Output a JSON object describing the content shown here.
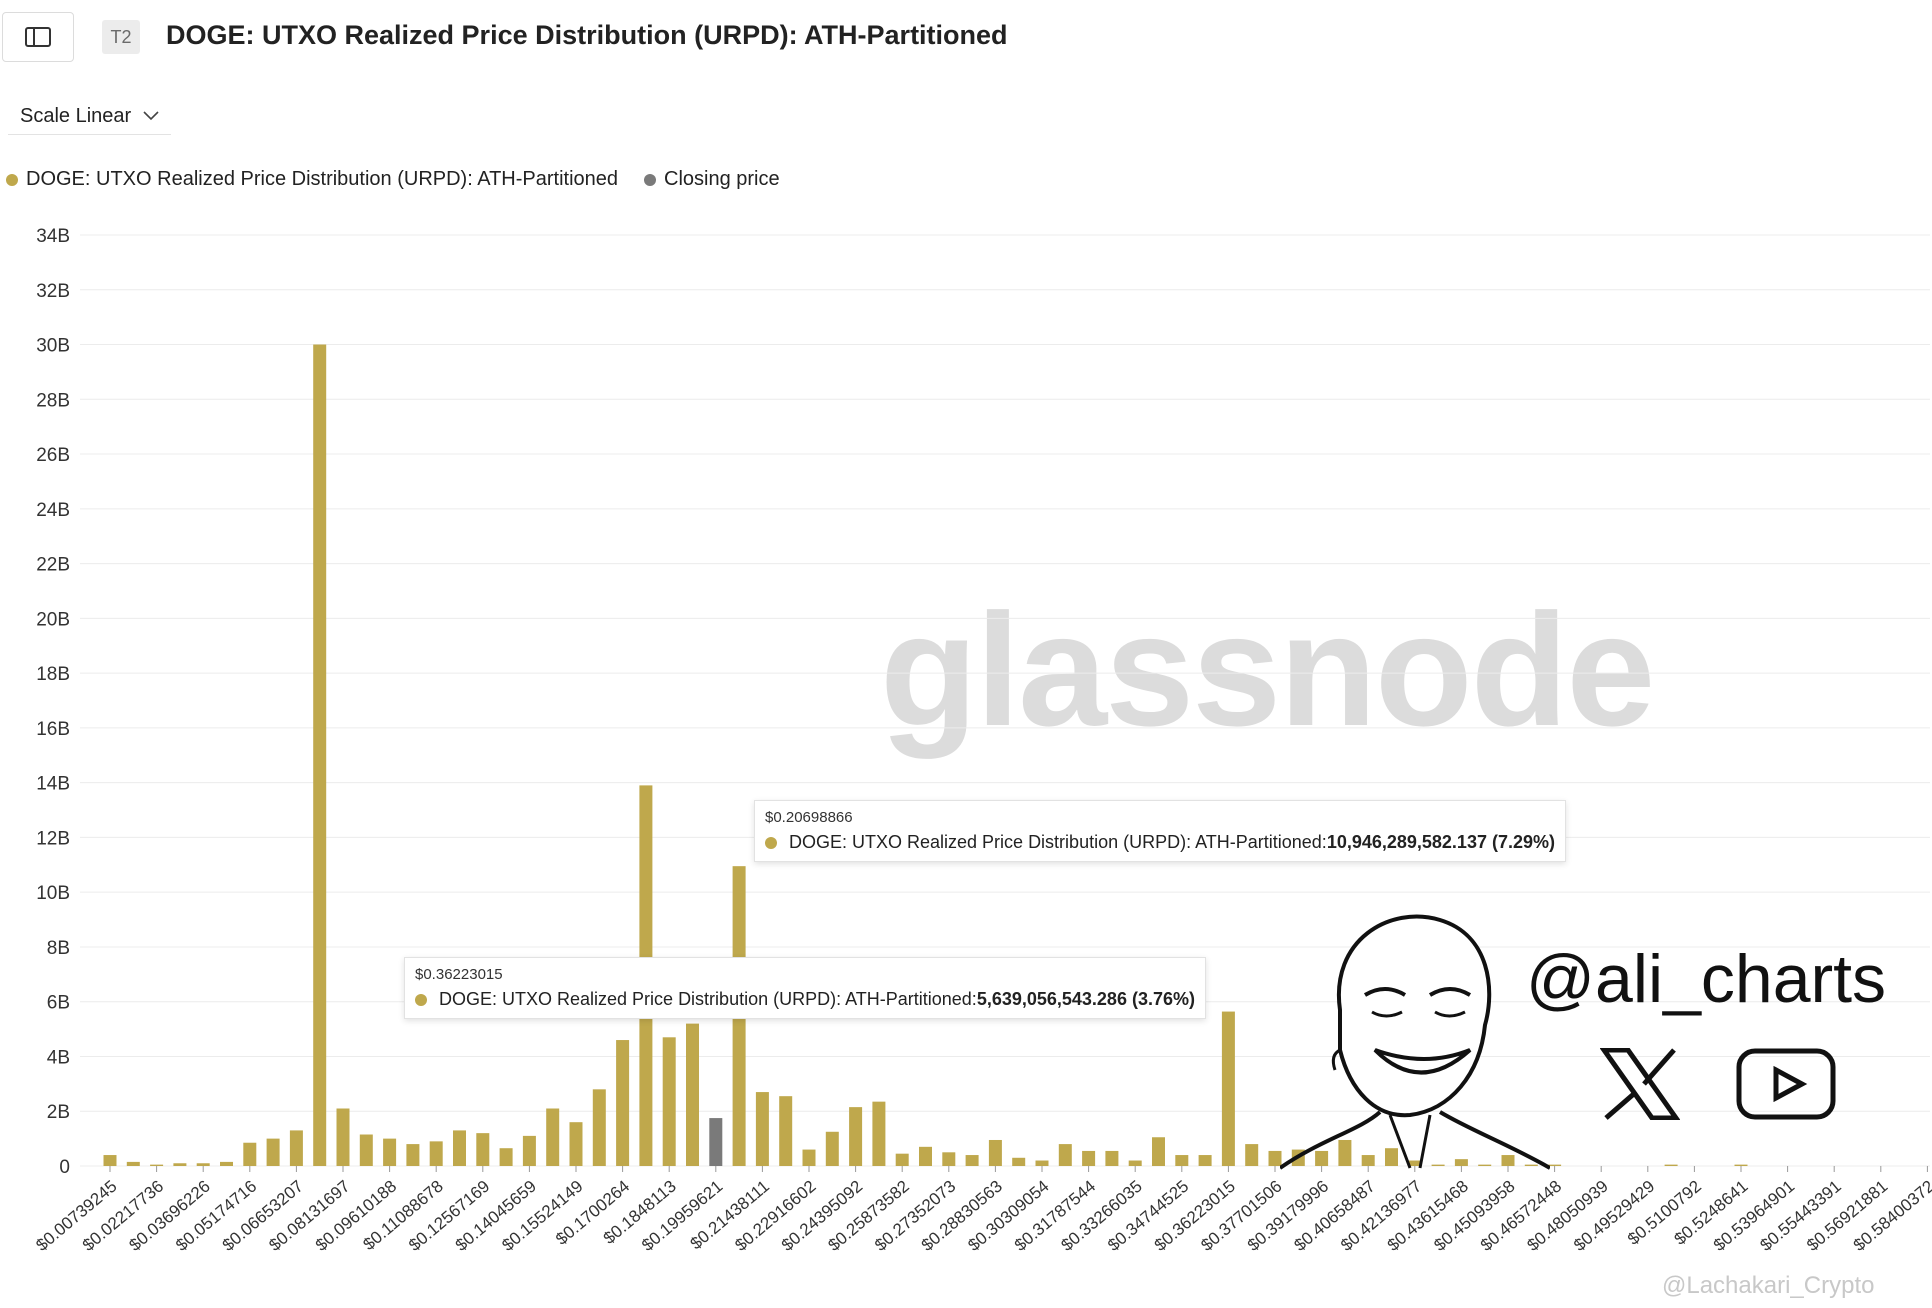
{
  "header": {
    "tier_badge": "T2",
    "title": "DOGE: UTXO Realized Price Distribution (URPD): ATH-Partitioned"
  },
  "controls": {
    "scale_label": "Scale Linear"
  },
  "legend": [
    {
      "label": "DOGE: UTXO Realized Price Distribution (URPD): ATH-Partitioned",
      "color": "#bfa84c"
    },
    {
      "label": "Closing price",
      "color": "#7a7a7a"
    }
  ],
  "colors": {
    "bar": "#bfa84c",
    "closing": "#7a7a7a",
    "grid": "#ececec"
  },
  "tooltips": [
    {
      "price": "$0.20698866",
      "series": "DOGE: UTXO Realized Price Distribution (URPD): ATH-Partitioned: ",
      "value": "10,946,289,582.137 (7.29%)"
    },
    {
      "price": "$0.36223015",
      "series": "DOGE: UTXO Realized Price Distribution (URPD): ATH-Partitioned: ",
      "value": "5,639,056,543.286 (3.76%)"
    }
  ],
  "watermark": "glassnode",
  "overlay": {
    "handle": "@ali_charts",
    "icons": [
      "x-logo-icon",
      "youtube-play-icon",
      "meme-face-drawing"
    ]
  },
  "footer_credit": "@Lachakari_Crypto",
  "chart_data": {
    "type": "bar",
    "xlabel": "",
    "ylabel": "",
    "ylim": [
      0,
      34
    ],
    "yticks": [
      "0",
      "2B",
      "4B",
      "6B",
      "8B",
      "10B",
      "12B",
      "14B",
      "16B",
      "18B",
      "20B",
      "22B",
      "24B",
      "26B",
      "28B",
      "30B",
      "32B",
      "34B"
    ],
    "grid": true,
    "legend_position": "top-left",
    "xtick_labels": [
      "$0.00739245",
      "$0.02217736",
      "$0.03696226",
      "$0.05174716",
      "$0.06653207",
      "$0.08131697",
      "$0.09610188",
      "$0.11088678",
      "$0.12567169",
      "$0.14045659",
      "$0.15524149",
      "$0.1700264",
      "$0.1848113",
      "$0.19959621",
      "$0.21438111",
      "$0.22916602",
      "$0.24395092",
      "$0.25873582",
      "$0.27352073",
      "$0.28830563",
      "$0.30309054",
      "$0.31787544",
      "$0.33266035",
      "$0.34744525",
      "$0.36223015",
      "$0.37701506",
      "$0.39179996",
      "$0.40658487",
      "$0.42136977",
      "$0.43615468",
      "$0.45093958",
      "$0.46572448",
      "$0.48050939",
      "$0.49529429",
      "$0.5100792",
      "$0.5248641",
      "$0.53964901",
      "$0.55443391",
      "$0.56921881",
      "$0.58400372"
    ],
    "series": [
      {
        "name": "DOGE: UTXO Realized Price Distribution (URPD): ATH-Partitioned",
        "color": "#bfa84c",
        "values": [
          0.4,
          0.15,
          0.05,
          0.1,
          0.1,
          0.15,
          0.85,
          1.0,
          1.3,
          30.0,
          2.1,
          1.15,
          1.0,
          0.8,
          0.9,
          1.3,
          1.2,
          0.65,
          1.1,
          2.1,
          1.6,
          2.8,
          4.6,
          13.9,
          4.7,
          5.2,
          0,
          10.95,
          2.7,
          2.55,
          0.6,
          1.25,
          2.15,
          2.35,
          0.45,
          0.7,
          0.5,
          0.4,
          0.95,
          0.3,
          0.2,
          0.8,
          0.55,
          0.55,
          0.2,
          1.05,
          0.4,
          0.4,
          5.64,
          0.8,
          0.55,
          0.6,
          0.55,
          0.95,
          0.4,
          0.65,
          0.2,
          0.05,
          0.25,
          0.05,
          0.4,
          0.05,
          0.05,
          0,
          0,
          0,
          0,
          0.05,
          0,
          0,
          0.05,
          0,
          0,
          0,
          0,
          0,
          0,
          0,
          0,
          0,
          0,
          0.2
        ]
      },
      {
        "name": "Closing price",
        "color": "#7a7a7a",
        "bar_index": 26,
        "values_at_index": 1.75
      }
    ]
  }
}
